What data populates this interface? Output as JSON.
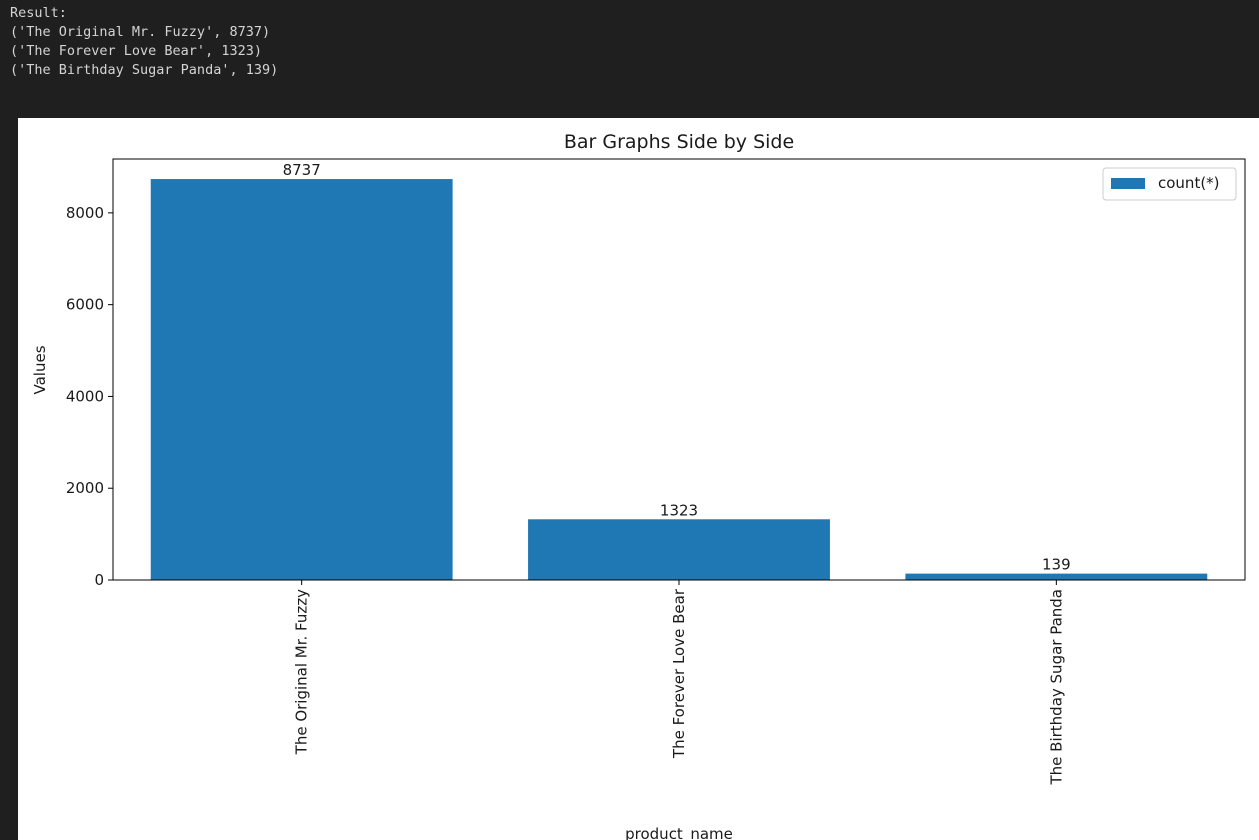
{
  "output": {
    "lines": [
      "Result:",
      "('The Original Mr. Fuzzy', 8737)",
      "('The Forever Love Bear', 1323)",
      "('The Birthday Sugar Panda', 139)"
    ]
  },
  "chart_data": {
    "type": "bar",
    "title": "Bar Graphs Side by Side",
    "xlabel": "product_name",
    "ylabel": "Values",
    "categories": [
      "The Original Mr. Fuzzy",
      "The Forever Love Bear",
      "The Birthday Sugar Panda"
    ],
    "series": [
      {
        "name": "count(*)",
        "values": [
          8737,
          1323,
          139
        ],
        "color": "#1f77b4"
      }
    ],
    "data_labels": [
      "8737",
      "1323",
      "139"
    ],
    "yticks": [
      0,
      2000,
      4000,
      6000,
      8000
    ],
    "ytick_labels": [
      "0",
      "2000",
      "4000",
      "6000",
      "8000"
    ],
    "ylim": [
      0,
      9173.85
    ],
    "legend_position": "top-right",
    "grid": false,
    "xtick_rotation": "vertical"
  }
}
